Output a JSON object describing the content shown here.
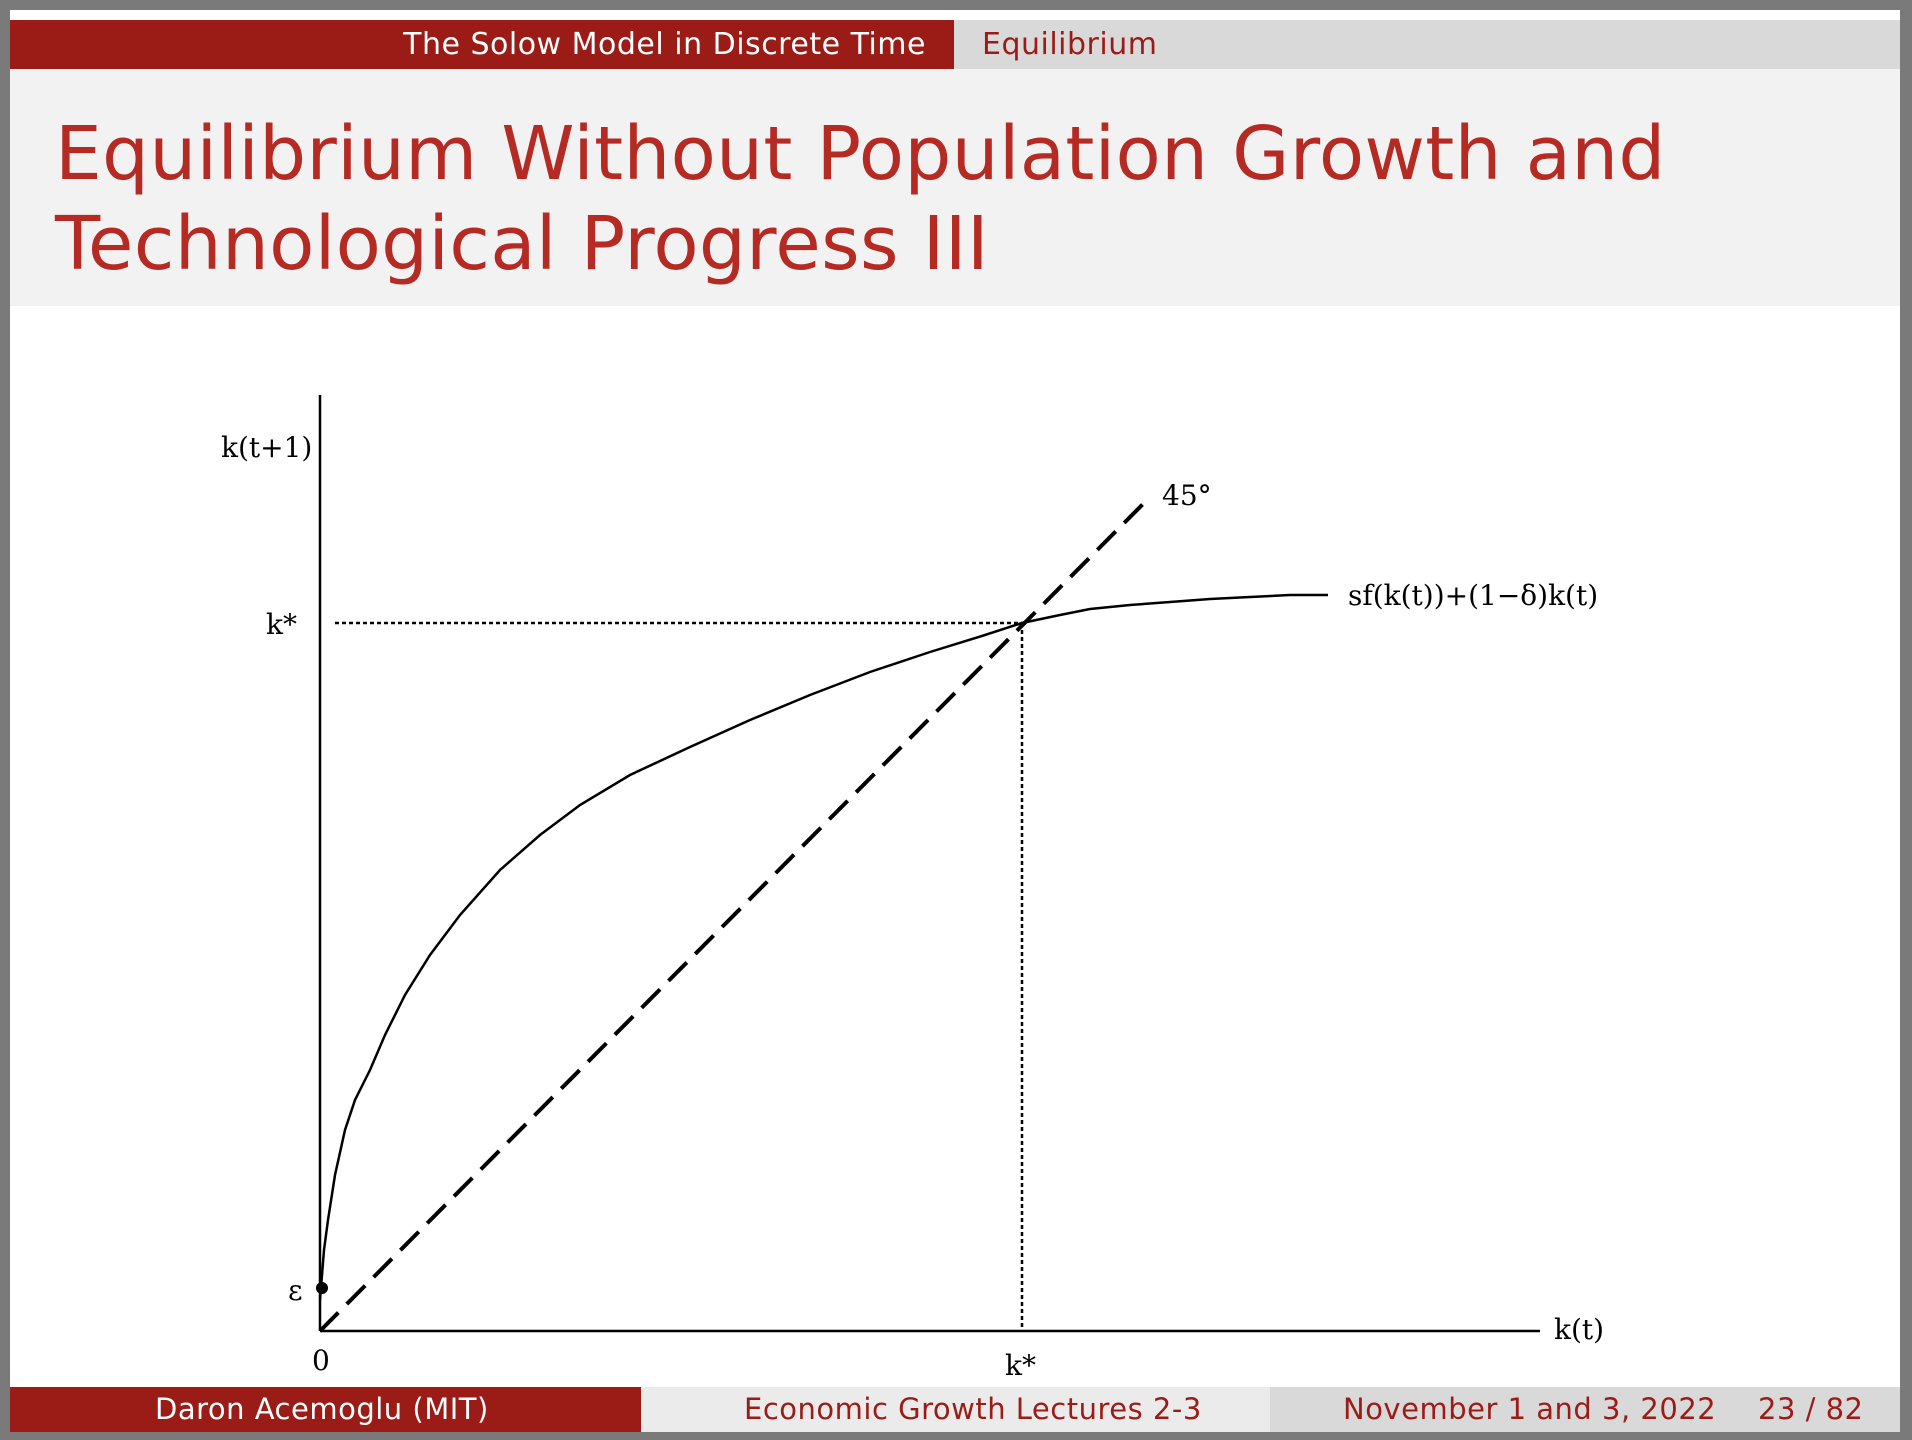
{
  "nav": {
    "section": "The Solow Model in Discrete Time",
    "subsection": "Equilibrium"
  },
  "title": "Equilibrium Without Population Growth and Technological Progress III",
  "figure": {
    "y_axis_label": "k(t+1)",
    "x_axis_label": "k(t)",
    "steady_state_y_label": "k*",
    "steady_state_x_label": "k*",
    "origin_label": "0",
    "epsilon_label": "ε",
    "diagonal_label": "45°",
    "curve_label": "sf(k(t))+(1−δ)k(t)"
  },
  "footer": {
    "author": "Daron Acemoglu  (MIT)",
    "course": "Economic Growth Lectures 2-3",
    "date": "November 1 and 3, 2022",
    "page": "23 / 82"
  }
}
